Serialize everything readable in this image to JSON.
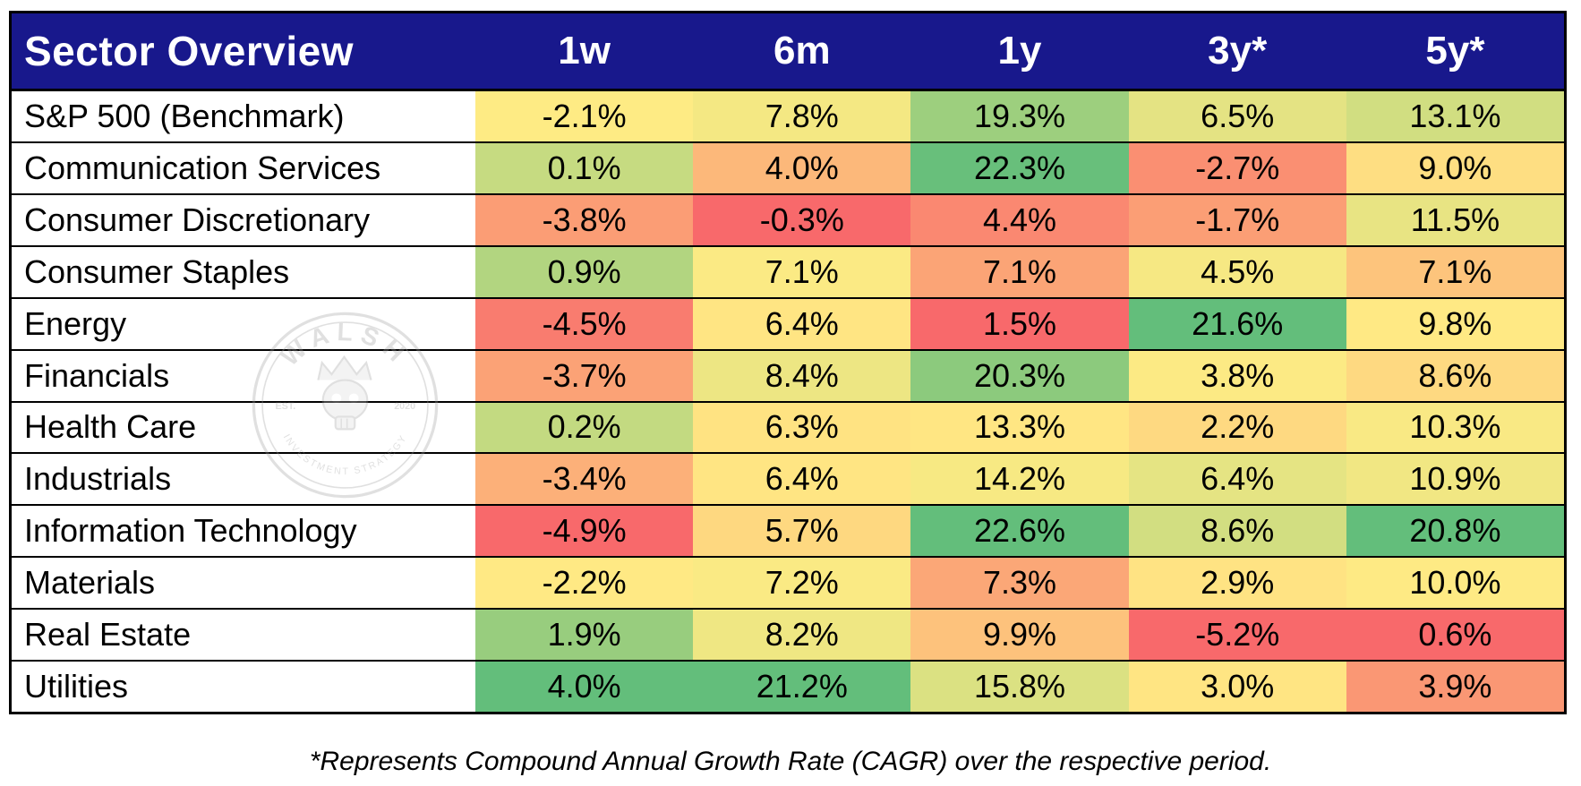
{
  "header": {
    "title": "Sector Overview",
    "columns": [
      "1w",
      "6m",
      "1y",
      "3y*",
      "5y*"
    ]
  },
  "footnote": "*Represents Compound Annual Growth Rate (CAGR) over the respective period.",
  "watermark": {
    "top_text": "WALSH",
    "left_text": "EST.",
    "right_text": "2020",
    "bottom_text": "INVESTMENT STRATEGY"
  },
  "colors": {
    "header_bg": "#18188C",
    "header_text": "#FFFFFF",
    "grid_border": "#000000",
    "scale_red": "#F8696B",
    "scale_yellow": "#FFEB84",
    "scale_green": "#63BE7B"
  },
  "chart_data": {
    "type": "heatmap",
    "title": "Sector Overview",
    "columns": [
      "1w",
      "6m",
      "1y",
      "3y*",
      "5y*"
    ],
    "unit": "%",
    "color_scale": "red-yellow-green 3-color scale applied per column (min=red, median=yellow, max=green)",
    "rows": [
      {
        "label": "S&P 500 (Benchmark)",
        "values": [
          -2.1,
          7.8,
          19.3,
          6.5,
          13.1
        ],
        "colors": [
          "#FEEB84",
          "#F4E883",
          "#9DCF7E",
          "#E4E383",
          "#D1DE81"
        ]
      },
      {
        "label": "Communication Services",
        "values": [
          0.1,
          4.0,
          22.3,
          -2.7,
          9.0
        ],
        "colors": [
          "#C6DB81",
          "#FCB87A",
          "#68BF7B",
          "#FA8F72",
          "#FEDE82"
        ]
      },
      {
        "label": "Consumer Discretionary",
        "values": [
          -3.8,
          -0.3,
          4.4,
          -1.7,
          11.5
        ],
        "colors": [
          "#FB9D75",
          "#F8696B",
          "#FA8871",
          "#FB9E75",
          "#E8E483"
        ]
      },
      {
        "label": "Consumer Staples",
        "values": [
          0.9,
          7.1,
          7.1,
          4.5,
          7.1
        ],
        "colors": [
          "#B2D580",
          "#FBEA84",
          "#FBA476",
          "#F6E883",
          "#FDC47C"
        ]
      },
      {
        "label": "Energy",
        "values": [
          -4.5,
          6.4,
          1.5,
          21.6,
          9.8
        ],
        "colors": [
          "#F97C6F",
          "#FFE583",
          "#F8696B",
          "#63BE7B",
          "#FFE984"
        ]
      },
      {
        "label": "Financials",
        "values": [
          -3.7,
          8.4,
          20.3,
          3.8,
          8.6
        ],
        "colors": [
          "#FBA276",
          "#EDE683",
          "#8CCA7D",
          "#FCEA84",
          "#FED981"
        ]
      },
      {
        "label": "Health Care",
        "values": [
          0.2,
          6.3,
          13.3,
          2.2,
          10.3
        ],
        "colors": [
          "#C3DA81",
          "#FFE382",
          "#FFE683",
          "#FED981",
          "#F9E984"
        ]
      },
      {
        "label": "Industrials",
        "values": [
          -3.4,
          6.4,
          14.2,
          6.4,
          10.9
        ],
        "colors": [
          "#FCB079",
          "#FFE583",
          "#F7E983",
          "#E5E483",
          "#F1E783"
        ]
      },
      {
        "label": "Information Technology",
        "values": [
          -4.9,
          5.7,
          22.6,
          8.6,
          20.8
        ],
        "colors": [
          "#F8696B",
          "#FED880",
          "#63BE7B",
          "#D2DE81",
          "#63BE7B"
        ]
      },
      {
        "label": "Materials",
        "values": [
          -2.2,
          7.2,
          7.3,
          2.9,
          10.0
        ],
        "colors": [
          "#FFE984",
          "#FAEA84",
          "#FBA777",
          "#FFE383",
          "#FEEA84"
        ]
      },
      {
        "label": "Real Estate",
        "values": [
          1.9,
          8.2,
          9.9,
          -5.2,
          0.6
        ],
        "colors": [
          "#98CD7E",
          "#EFE783",
          "#FDC27C",
          "#F8696B",
          "#F8696B"
        ]
      },
      {
        "label": "Utilities",
        "values": [
          4.0,
          21.2,
          15.8,
          3.0,
          3.9
        ],
        "colors": [
          "#63BE7B",
          "#63BE7B",
          "#DBE182",
          "#FFE583",
          "#FA9774"
        ]
      }
    ]
  }
}
